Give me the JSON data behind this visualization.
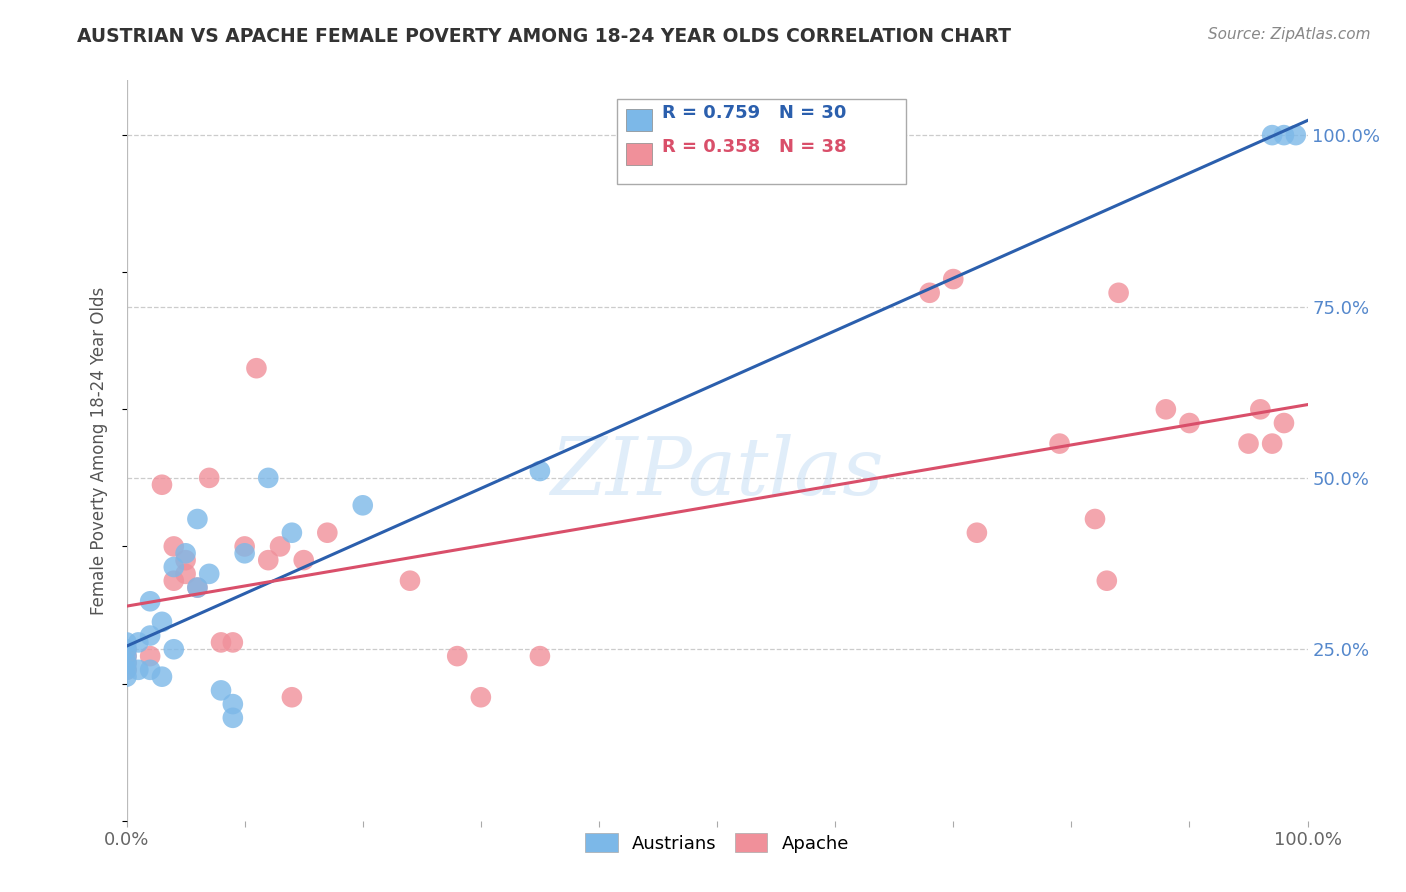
{
  "title": "AUSTRIAN VS APACHE FEMALE POVERTY AMONG 18-24 YEAR OLDS CORRELATION CHART",
  "source": "Source: ZipAtlas.com",
  "ylabel": "Female Poverty Among 18-24 Year Olds",
  "xlim": [
    0.0,
    1.0
  ],
  "ylim": [
    0.0,
    1.08
  ],
  "ytick_positions": [
    0.25,
    0.5,
    0.75,
    1.0
  ],
  "ytick_labels": [
    "25.0%",
    "50.0%",
    "75.0%",
    "100.0%"
  ],
  "austrians_R": 0.759,
  "austrians_N": 30,
  "apache_R": 0.358,
  "apache_N": 38,
  "austrians_color": "#7cb8e8",
  "apache_color": "#f0909a",
  "trendline_austrians_color": "#2b5fad",
  "trendline_apache_color": "#d94f6a",
  "watermark_color": "#c8dff5",
  "austrians_x": [
    0.0,
    0.0,
    0.0,
    0.0,
    0.0,
    0.0,
    0.01,
    0.01,
    0.02,
    0.02,
    0.02,
    0.03,
    0.03,
    0.04,
    0.04,
    0.05,
    0.06,
    0.06,
    0.07,
    0.08,
    0.09,
    0.09,
    0.1,
    0.12,
    0.14,
    0.2,
    0.35,
    0.97,
    0.98,
    0.99
  ],
  "austrians_y": [
    0.21,
    0.22,
    0.23,
    0.24,
    0.25,
    0.26,
    0.22,
    0.26,
    0.22,
    0.27,
    0.32,
    0.21,
    0.29,
    0.25,
    0.37,
    0.39,
    0.34,
    0.44,
    0.36,
    0.19,
    0.17,
    0.15,
    0.39,
    0.5,
    0.42,
    0.46,
    0.51,
    1.0,
    1.0,
    1.0
  ],
  "apache_x": [
    0.0,
    0.0,
    0.0,
    0.0,
    0.02,
    0.03,
    0.04,
    0.04,
    0.05,
    0.05,
    0.06,
    0.07,
    0.08,
    0.09,
    0.1,
    0.11,
    0.12,
    0.13,
    0.14,
    0.15,
    0.17,
    0.24,
    0.28,
    0.3,
    0.35,
    0.68,
    0.7,
    0.72,
    0.79,
    0.82,
    0.83,
    0.84,
    0.88,
    0.9,
    0.95,
    0.96,
    0.97,
    0.98
  ],
  "apache_y": [
    0.22,
    0.23,
    0.24,
    0.25,
    0.24,
    0.49,
    0.35,
    0.4,
    0.36,
    0.38,
    0.34,
    0.5,
    0.26,
    0.26,
    0.4,
    0.66,
    0.38,
    0.4,
    0.18,
    0.38,
    0.42,
    0.35,
    0.24,
    0.18,
    0.24,
    0.77,
    0.79,
    0.42,
    0.55,
    0.44,
    0.35,
    0.77,
    0.6,
    0.58,
    0.55,
    0.6,
    0.55,
    0.58
  ]
}
